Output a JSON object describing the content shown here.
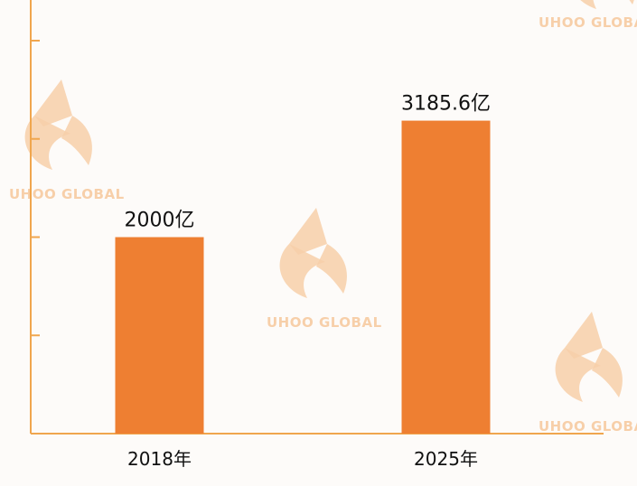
{
  "chart_data": {
    "type": "bar",
    "categories": [
      "2018年",
      "2025年"
    ],
    "values": [
      2000,
      3185.6
    ],
    "data_labels": [
      "2000亿",
      "3185.6亿"
    ],
    "title": "",
    "xlabel": "",
    "ylabel": "",
    "ylim": [
      0,
      4000
    ],
    "grid": false,
    "legend": "none"
  },
  "watermark": {
    "text": "UHOO GLOBAL",
    "icon": "fox-logo-icon"
  },
  "colors": {
    "bar": "#ee7f32",
    "axis": "#f0a64e",
    "watermark": "#f7cfa9",
    "background": "#fdfbf9"
  }
}
